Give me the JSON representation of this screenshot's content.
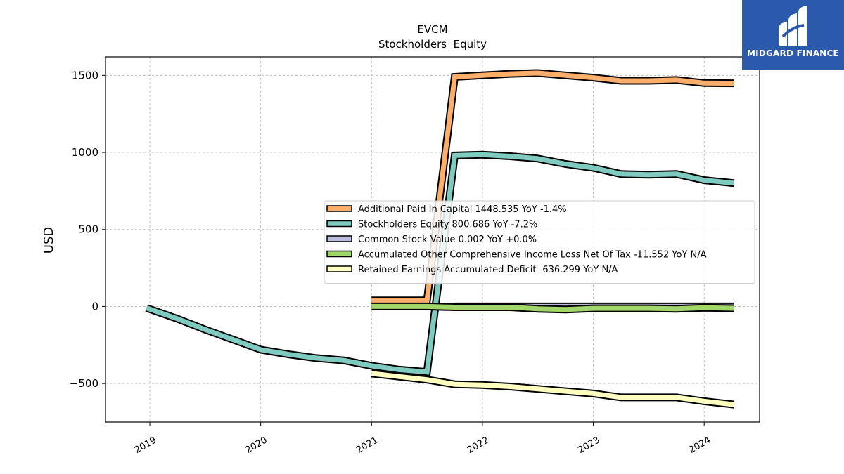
{
  "brand": {
    "name": "MIDGARD FINANCE",
    "background": "#2b5aad"
  },
  "chart_data": {
    "type": "line",
    "title": "EVCM",
    "subtitle": "Stockholders  Equity",
    "ylabel": "USD",
    "xlabel": "",
    "ylim": [
      -750,
      1620
    ],
    "xlim": [
      2018.6,
      2024.5
    ],
    "yticks": [
      -500,
      0,
      500,
      1000,
      1500
    ],
    "ytick_labels": [
      "−500",
      "0",
      "500",
      "1000",
      "1500"
    ],
    "xticks": [
      2019,
      2020,
      2021,
      2022,
      2023,
      2024
    ],
    "xtick_labels": [
      "2019",
      "2020",
      "2021",
      "2022",
      "2023",
      "2024"
    ],
    "grid": true,
    "legend_position": "center-right",
    "series": [
      {
        "name": "Additional Paid In Capital",
        "legend": "Additional Paid In Capital  1448.535 YoY -1.4%",
        "color": "#fdae6b",
        "x": [
          2021.0,
          2021.25,
          2021.5,
          2021.75,
          2022.0,
          2022.25,
          2022.5,
          2022.75,
          2023.0,
          2023.25,
          2023.5,
          2023.75,
          2024.0,
          2024.27
        ],
        "y": [
          40,
          40,
          40,
          1490,
          1500,
          1510,
          1515,
          1500,
          1485,
          1465,
          1465,
          1470,
          1450,
          1448.535
        ]
      },
      {
        "name": "Stockholders Equity",
        "legend": "Stockholders Equity  800.686 YoY -7.2%",
        "color": "#80cbc0",
        "x": [
          2018.97,
          2019.25,
          2019.5,
          2019.75,
          2020.0,
          2020.25,
          2020.5,
          2020.75,
          2021.0,
          2021.25,
          2021.5,
          2021.75,
          2022.0,
          2022.25,
          2022.5,
          2022.75,
          2023.0,
          2023.25,
          2023.5,
          2023.75,
          2024.0,
          2024.27
        ],
        "y": [
          -10,
          -80,
          -150,
          -215,
          -280,
          -310,
          -335,
          -350,
          -385,
          -410,
          -425,
          980,
          985,
          975,
          960,
          925,
          900,
          860,
          855,
          860,
          820,
          800.686
        ]
      },
      {
        "name": "Common Stock Value",
        "legend": "Common Stock Value  0.002 YoY +0.0%",
        "color": "#bcbddc",
        "x": [
          2021.75,
          2022.0,
          2022.25,
          2022.5,
          2022.75,
          2023.0,
          2023.25,
          2023.5,
          2023.75,
          2024.0,
          2024.27
        ],
        "y": [
          0.002,
          0.002,
          0.002,
          0.002,
          0.002,
          0.002,
          0.002,
          0.002,
          0.002,
          0.002,
          0.002
        ]
      },
      {
        "name": "Accumulated Other Comprehensive Income Loss Net Of Tax",
        "legend": "Accumulated Other Comprehensive Income Loss Net Of Tax  -11.552 YoY N/A",
        "color": "#a1d76a",
        "x": [
          2021.0,
          2021.25,
          2021.5,
          2021.75,
          2022.0,
          2022.25,
          2022.5,
          2022.75,
          2023.0,
          2023.25,
          2023.5,
          2023.75,
          2024.0,
          2024.27
        ],
        "y": [
          0,
          0,
          0,
          -5,
          -5,
          -5,
          -15,
          -20,
          -12,
          -12,
          -12,
          -15,
          -8,
          -11.552
        ]
      },
      {
        "name": "Retained Earnings Accumulated Deficit",
        "legend": "Retained Earnings Accumulated Deficit  -636.299 YoY N/A",
        "color": "#ffffbf",
        "x": [
          2021.0,
          2021.25,
          2021.5,
          2021.75,
          2022.0,
          2022.25,
          2022.5,
          2022.75,
          2023.0,
          2023.25,
          2023.5,
          2023.75,
          2024.0,
          2024.27
        ],
        "y": [
          -435,
          -455,
          -475,
          -505,
          -510,
          -520,
          -535,
          -550,
          -565,
          -590,
          -590,
          -590,
          -615,
          -636.299
        ]
      }
    ]
  }
}
